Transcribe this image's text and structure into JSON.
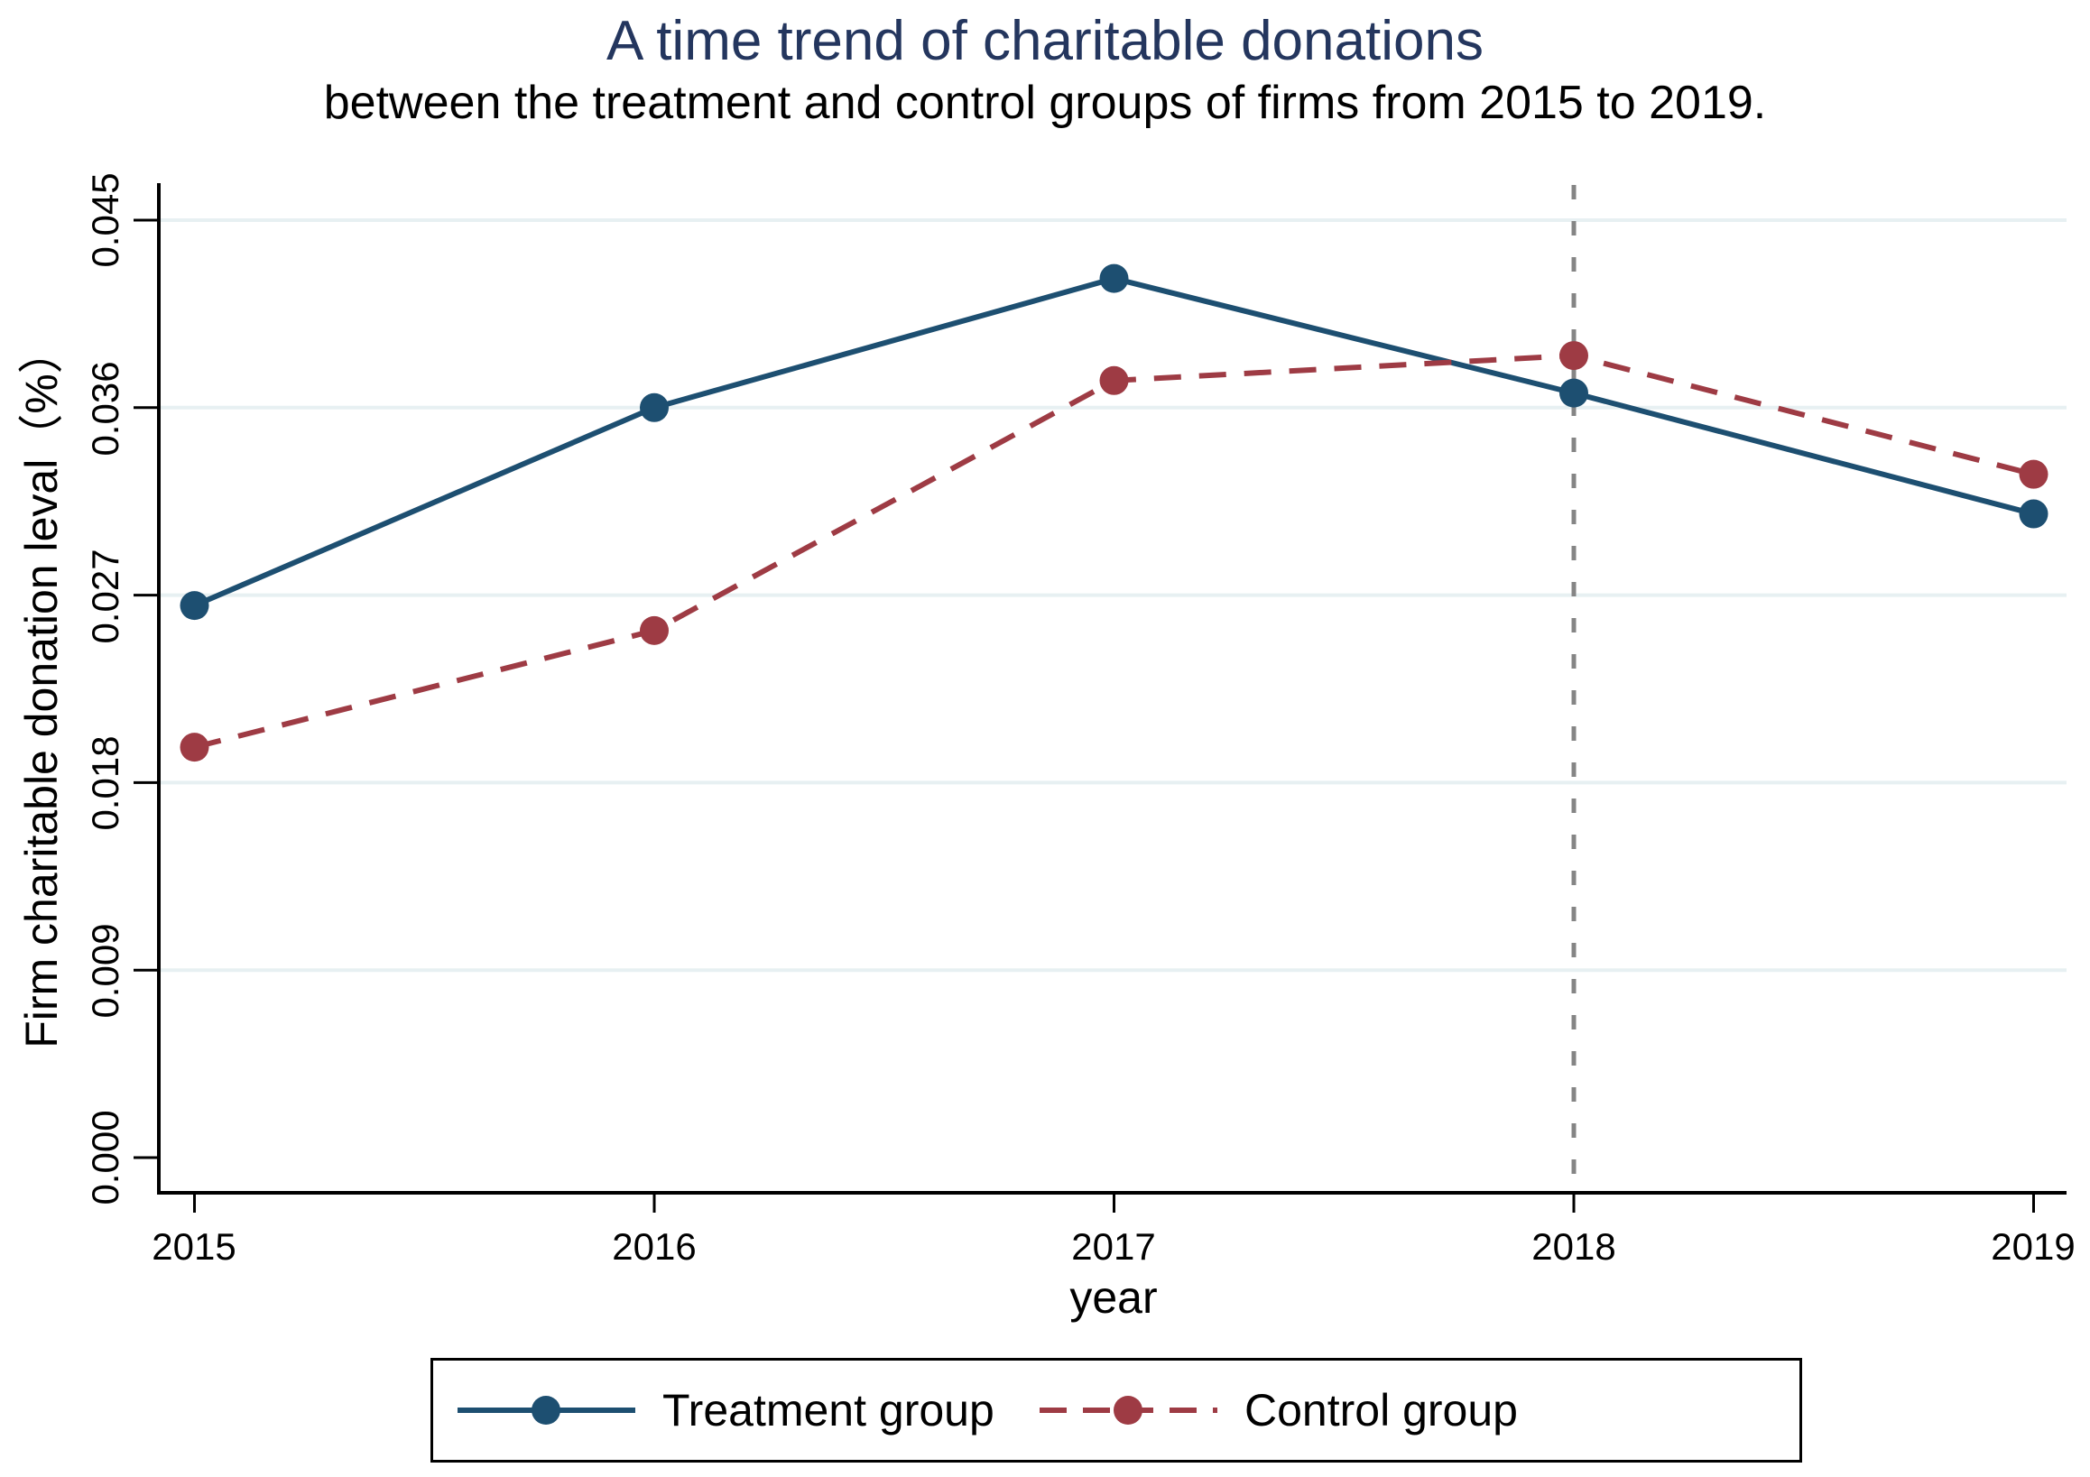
{
  "title": "A time trend of charitable donations",
  "subtitle": "between the treatment and control groups of firms from 2015 to 2019.",
  "colors": {
    "title": "#24365e",
    "axis": "#000000",
    "grid": "#e7f0f2",
    "background": "#ffffff"
  },
  "chart_data": {
    "type": "line",
    "x": [
      2015,
      2016,
      2017,
      2018,
      2019
    ],
    "xtick_labels": [
      "2015",
      "2016",
      "2017",
      "2018",
      "2019"
    ],
    "ytick_values": [
      0.0,
      0.009,
      0.018,
      0.027,
      0.036,
      0.045
    ],
    "ytick_labels": [
      "0.000",
      "0.009",
      "0.018",
      "0.027",
      "0.036",
      "0.045"
    ],
    "xlabel": "year",
    "ylabel": "Firm charitable donation leval（%）",
    "ylim": [
      0,
      0.045
    ],
    "grid": true,
    "legend_position": "bottom",
    "series": [
      {
        "name": "Treatment group",
        "values": [
          0.0265,
          0.036,
          0.0422,
          0.0367,
          0.0309
        ],
        "color": "#1d4f71",
        "style": "solid",
        "marker": "circle"
      },
      {
        "name": "Control group",
        "values": [
          0.0197,
          0.0253,
          0.0373,
          0.0385,
          0.0328
        ],
        "color": "#9e3b44",
        "style": "dashed",
        "marker": "circle"
      }
    ],
    "vline": {
      "x": 2018,
      "color": "#858585",
      "style": "dashed"
    }
  }
}
